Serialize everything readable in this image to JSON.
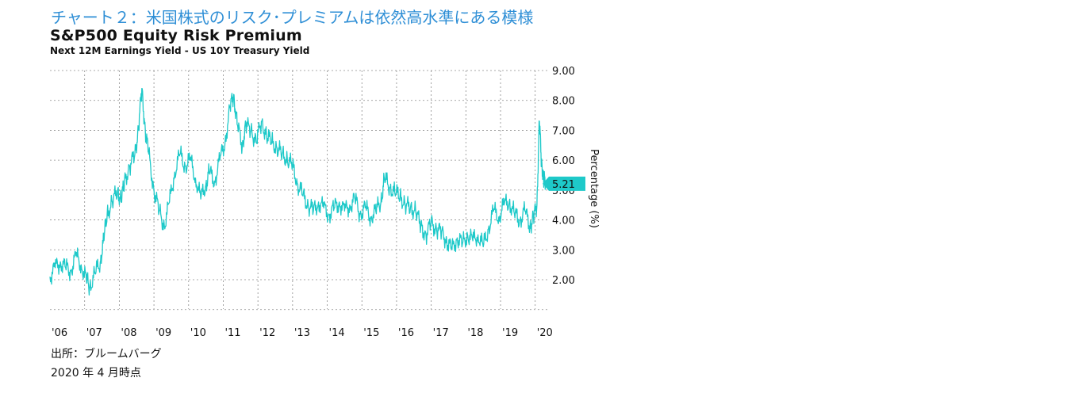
{
  "caption": "チャート２：米国株式のリスク･プレミアムは依然高水準にある模様",
  "footer": {
    "source": "出所：ブルームバーグ",
    "date": "2020 年 4 月時点"
  },
  "colors": {
    "series": "#1ec9c9",
    "label_bg": "#1ec9c9",
    "caption": "#2f8fd6"
  },
  "chart_data": {
    "type": "line",
    "title": "S&P500 Equity Risk Premium",
    "subtitle": "Next 12M Earnings Yield - US 10Y Treasury Yield",
    "ylabel": "Percentage (%)",
    "xlabel": "",
    "ylim": [
      1.0,
      9.0
    ],
    "xlim": [
      2006.0,
      2020.35
    ],
    "grid": true,
    "y_ticks": [
      "2.00",
      "3.00",
      "4.00",
      "5.00",
      "6.00",
      "7.00",
      "8.00",
      "9.00"
    ],
    "x_ticks": [
      "'06",
      "'07",
      "'08",
      "'09",
      "'10",
      "'11",
      "'12",
      "'13",
      "'14",
      "'15",
      "'16",
      "'17",
      "'18",
      "'19",
      "'20"
    ],
    "last_value_label": "5.21",
    "series": [
      {
        "x": [
          2006.0,
          2006.15,
          2006.3,
          2006.45,
          2006.6,
          2006.75,
          2006.9,
          2007.05,
          2007.15,
          2007.3,
          2007.45,
          2007.55,
          2007.65,
          2007.8,
          2007.95,
          2008.05,
          2008.15,
          2008.3,
          2008.45,
          2008.55,
          2008.65,
          2008.75,
          2008.85,
          2009.0,
          2009.15,
          2009.3,
          2009.45,
          2009.6,
          2009.75,
          2009.9,
          2010.05,
          2010.2,
          2010.35,
          2010.5,
          2010.6,
          2010.75,
          2010.9,
          2011.05,
          2011.2,
          2011.3,
          2011.4,
          2011.55,
          2011.65,
          2011.8,
          2011.95,
          2012.1,
          2012.25,
          2012.4,
          2012.55,
          2012.7,
          2012.85,
          2013.0,
          2013.15,
          2013.3,
          2013.45,
          2013.6,
          2013.75,
          2013.9,
          2014.05,
          2014.2,
          2014.35,
          2014.5,
          2014.65,
          2014.8,
          2014.95,
          2015.1,
          2015.25,
          2015.4,
          2015.55,
          2015.65,
          2015.8,
          2015.95,
          2016.1,
          2016.25,
          2016.4,
          2016.55,
          2016.7,
          2016.85,
          2017.0,
          2017.15,
          2017.3,
          2017.45,
          2017.6,
          2017.75,
          2017.9,
          2018.05,
          2018.2,
          2018.35,
          2018.5,
          2018.65,
          2018.8,
          2018.95,
          2019.1,
          2019.25,
          2019.4,
          2019.55,
          2019.7,
          2019.85,
          2019.95,
          2020.05,
          2020.12,
          2020.18,
          2020.24,
          2020.3
        ],
        "y": [
          2.1,
          2.4,
          2.6,
          2.4,
          2.3,
          2.8,
          2.5,
          2.0,
          1.75,
          2.2,
          2.6,
          3.3,
          4.2,
          4.6,
          5.0,
          4.6,
          5.3,
          5.8,
          6.2,
          7.0,
          8.4,
          7.0,
          6.2,
          5.0,
          4.3,
          3.8,
          4.6,
          5.6,
          6.2,
          5.8,
          6.0,
          5.4,
          4.7,
          5.2,
          5.6,
          5.3,
          6.0,
          6.6,
          7.8,
          8.2,
          7.2,
          6.5,
          7.2,
          7.0,
          6.6,
          7.3,
          6.8,
          6.6,
          6.4,
          6.2,
          6.0,
          5.8,
          5.2,
          4.8,
          4.5,
          4.3,
          4.6,
          4.4,
          4.2,
          4.4,
          4.6,
          4.3,
          4.5,
          4.7,
          4.2,
          4.4,
          4.1,
          4.3,
          4.6,
          5.4,
          5.1,
          4.9,
          4.8,
          4.5,
          4.4,
          4.3,
          3.8,
          3.5,
          3.9,
          3.7,
          3.6,
          3.3,
          3.0,
          3.4,
          3.2,
          3.5,
          3.3,
          3.5,
          3.1,
          3.7,
          4.3,
          4.1,
          4.5,
          4.6,
          4.2,
          4.0,
          4.3,
          3.8,
          4.1,
          4.5,
          7.3,
          6.0,
          5.4,
          5.21
        ]
      }
    ]
  }
}
